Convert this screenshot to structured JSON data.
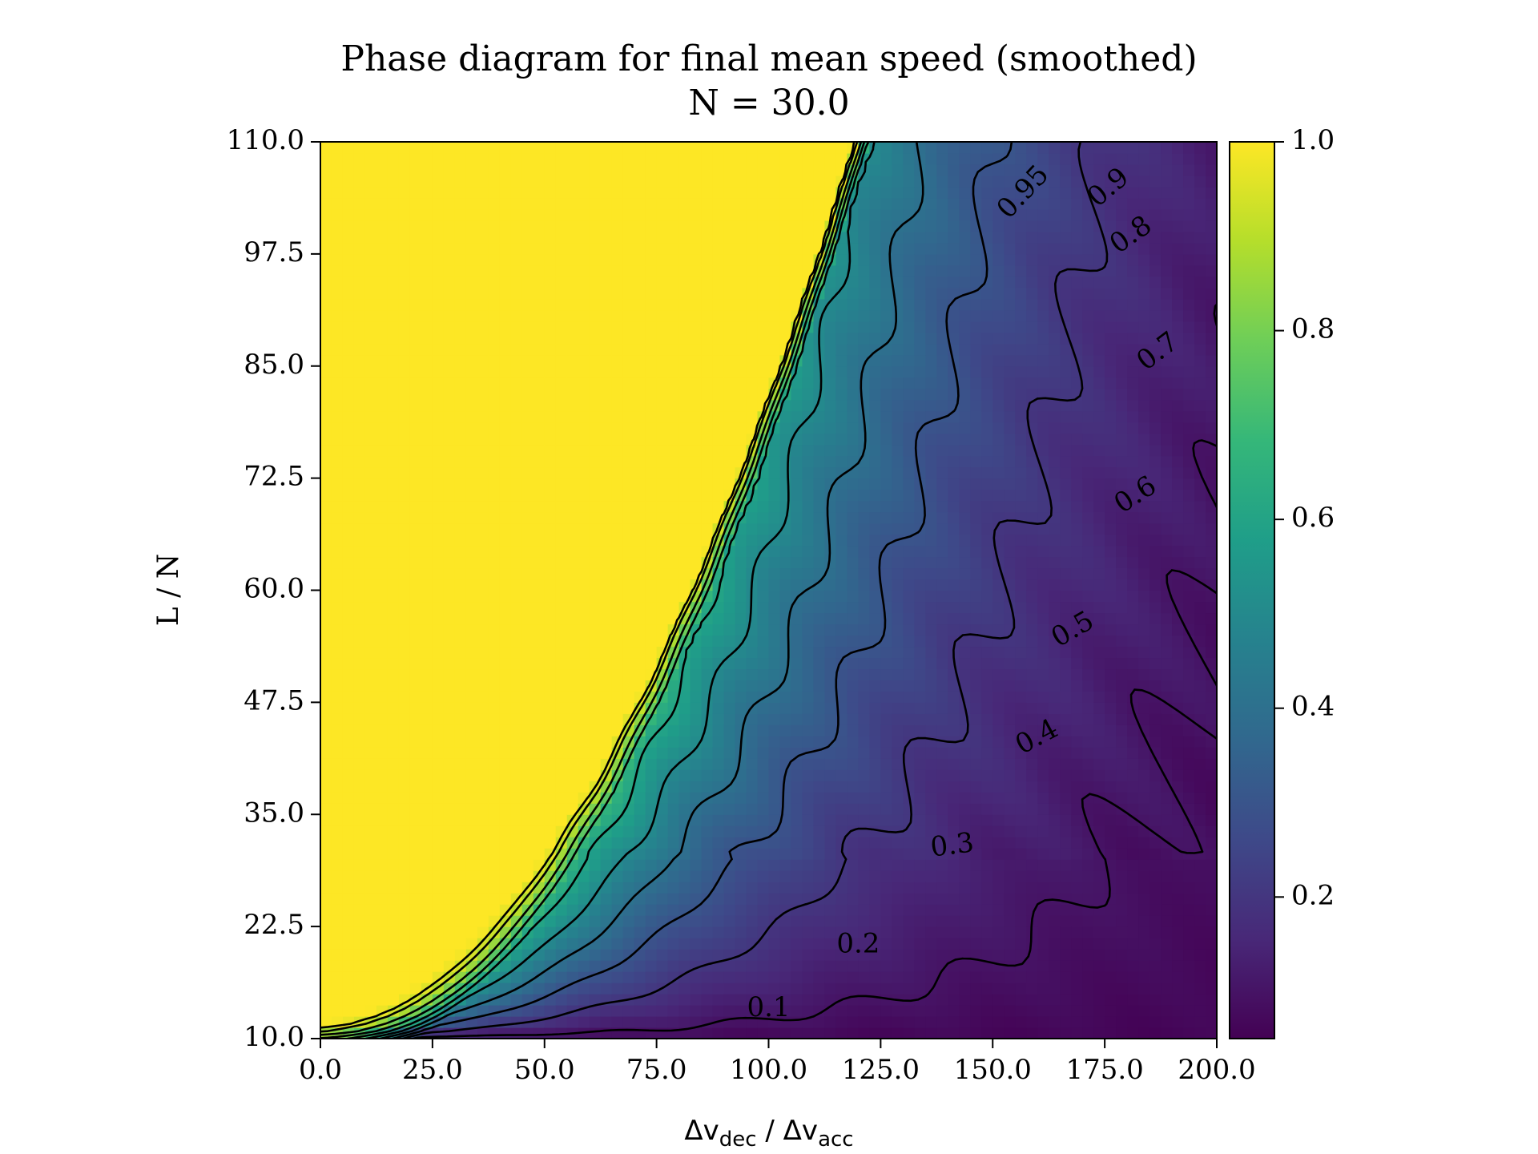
{
  "chart_data": {
    "type": "heatmap",
    "title": "Phase diagram for final mean speed (smoothed)",
    "subtitle": "N = 30.0",
    "xlabel": {
      "base": "Δv",
      "sub": "dec",
      "sep": " / ",
      "base2": "Δv",
      "sub2": "acc"
    },
    "ylabel": "L / N",
    "xlim": [
      0,
      200
    ],
    "ylim": [
      10,
      110
    ],
    "x_ticks": [
      0,
      25,
      50,
      75,
      100,
      125,
      150,
      175,
      200
    ],
    "x_tick_labels": [
      "0.0",
      "25.0",
      "50.0",
      "75.0",
      "100.0",
      "125.0",
      "150.0",
      "175.0",
      "200.0"
    ],
    "y_ticks": [
      10,
      22.5,
      35,
      47.5,
      60,
      72.5,
      85,
      97.5,
      110
    ],
    "y_tick_labels": [
      "10.0",
      "22.5",
      "35.0",
      "47.5",
      "60.0",
      "72.5",
      "85.0",
      "97.5",
      "110.0"
    ],
    "colormap": "viridis",
    "colormap_stops": [
      "#440154",
      "#482878",
      "#3e4989",
      "#31688e",
      "#26828e",
      "#1f9e89",
      "#35b779",
      "#6ece58",
      "#b5de2b",
      "#fde725"
    ],
    "colorbar": {
      "range": [
        0.05,
        1.0
      ],
      "ticks": [
        0.2,
        0.4,
        0.6,
        0.8,
        1.0
      ],
      "tick_labels": [
        "0.2",
        "0.4",
        "0.6",
        "0.8",
        "1.0"
      ]
    },
    "contour_levels": [
      0.1,
      0.2,
      0.3,
      0.4,
      0.5,
      0.6,
      0.7,
      0.8,
      0.9,
      0.95
    ],
    "contour_labels": [
      {
        "text": "0.1",
        "x": 100,
        "y": 13.3,
        "angle": 0
      },
      {
        "text": "0.2",
        "x": 120,
        "y": 20.4,
        "angle": 0
      },
      {
        "text": "0.3",
        "x": 141,
        "y": 31.4,
        "angle": -7
      },
      {
        "text": "0.4",
        "x": 160,
        "y": 43.5,
        "angle": -28
      },
      {
        "text": "0.5",
        "x": 168,
        "y": 55.5,
        "angle": -30
      },
      {
        "text": "0.6",
        "x": 182,
        "y": 70.5,
        "angle": -33
      },
      {
        "text": "0.7",
        "x": 187,
        "y": 86.5,
        "angle": -37
      },
      {
        "text": "0.8",
        "x": 181,
        "y": 99.5,
        "angle": -35
      },
      {
        "text": "0.9",
        "x": 176,
        "y": 104.8,
        "angle": -40
      },
      {
        "text": "0.95",
        "x": 157,
        "y": 104.3,
        "angle": -47
      }
    ]
  }
}
